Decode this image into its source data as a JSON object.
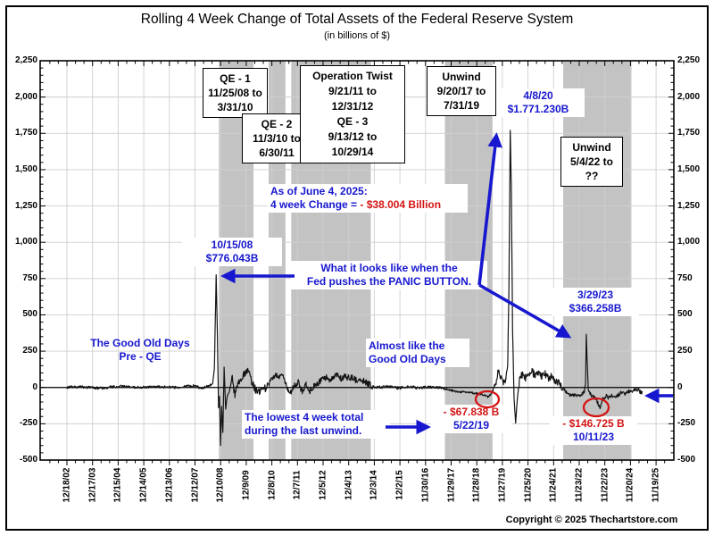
{
  "window": {
    "title": "Rolling 4 Week Change of Total Assets of the Federal Reserve System",
    "subtitle": "(in billions of $)"
  },
  "footer": {
    "copyright": "Copyright © 2025 Thechartstore.com"
  },
  "colors": {
    "blue": "#1717cf",
    "red": "#d41414",
    "band": "#c3c3c3",
    "grid": "#cfcfcf",
    "line": "#141414",
    "axis": "#000000"
  },
  "chart_data": {
    "type": "line",
    "title": "Rolling 4 Week Change of Total Assets of the Federal Reserve System",
    "subtitle": "(in billions of $)",
    "ylabel": "billions of $",
    "ylim": [
      -500,
      2250
    ],
    "grid": true,
    "y_tick_labels": [
      "2,250",
      "2,000",
      "1,750",
      "1,500",
      "1,250",
      "1,000",
      "750",
      "500",
      "250",
      "0",
      "-250",
      "-500"
    ],
    "y_tick_values": [
      2250,
      2000,
      1750,
      1500,
      1250,
      1000,
      750,
      500,
      250,
      0,
      -250,
      -500
    ],
    "x_tick_labels": [
      "12/18/02",
      "12/17/03",
      "12/15/04",
      "12/14/05",
      "12/13/06",
      "12/12/07",
      "12/10/08",
      "12/9/09",
      "12/8/10",
      "12/7/11",
      "12/5/12",
      "12/4/13",
      "12/3/14",
      "12/2/15",
      "11/30/16",
      "11/29/17",
      "11/28/18",
      "11/27/19",
      "11/25/20",
      "11/24/21",
      "11/23/22",
      "11/22/23",
      "11/20/24",
      "11/19/25"
    ],
    "shaded_periods": [
      {
        "name": "QE - 1",
        "from": "11/25/08",
        "to": "3/31/10",
        "from_t": 2008.899,
        "to_t": 2010.247,
        "box_lines": [
          "QE - 1",
          "11/25/08 to",
          "3/31/10"
        ]
      },
      {
        "name": "QE - 2",
        "from": "11/3/10",
        "to": "6/30/11",
        "from_t": 2010.838,
        "to_t": 2011.494,
        "box_lines": [
          "QE - 2",
          "11/3/10 to",
          "6/30/11"
        ]
      },
      {
        "name": "Operation Twist / QE - 3",
        "from": "9/21/11",
        "to": "10/29/14",
        "from_t": 2011.72,
        "to_t": 2014.826,
        "box_lines": [
          "Operation Twist",
          "9/21/11 to",
          "12/31/12",
          "QE - 3",
          "9/13/12 to",
          "10/29/14"
        ]
      },
      {
        "name": "Unwind",
        "from": "9/20/17",
        "to": "7/31/19",
        "from_t": 2017.719,
        "to_t": 2019.578,
        "box_lines": [
          "Unwind",
          "9/20/17 to",
          "7/31/19"
        ]
      },
      {
        "name": "Unwind",
        "from": "5/4/22",
        "to": "??",
        "from_t": 2022.337,
        "to_t": 2025.0,
        "box_lines": [
          "Unwind",
          "5/4/22 to",
          "??"
        ]
      }
    ],
    "notes": {
      "d2008": [
        "10/15/08",
        "$776.043B"
      ],
      "d2020": [
        "4/8/20",
        "$1.771.230B"
      ],
      "d2023": [
        "3/29/23",
        "$366.258B"
      ],
      "asof": {
        "line1": "As of June 4, 2025:",
        "line2_prefix": "4 week Change = ",
        "line2_value": "- $38.004 Billion"
      },
      "panic": [
        "What it looks like when the",
        "Fed pushes the PANIC BUTTON."
      ],
      "goodold": [
        "The Good Old Days",
        "Pre - QE"
      ],
      "almost": [
        "Almost like the",
        "Good Old Days"
      ],
      "lowest": [
        "The lowest 4 week total",
        "during the last unwind."
      ],
      "low2019": [
        "- $67.838 B",
        "5/22/19"
      ],
      "low2023": [
        "- $146.725 B",
        "10/11/23"
      ]
    },
    "key_points": [
      {
        "date": "10/15/08",
        "value_billions": 776.043
      },
      {
        "date": "5/22/19",
        "value_billions": -67.838
      },
      {
        "date": "4/8/20",
        "value_billions": 1771.23
      },
      {
        "date": "3/29/23",
        "value_billions": 366.258
      },
      {
        "date": "10/11/23",
        "value_billions": -146.725
      },
      {
        "date": "6/4/25",
        "value_billions": -38.004
      }
    ],
    "series": {
      "name": "Rolling 4 week change of Fed total assets",
      "step_years": 0.019230769,
      "anchors": [
        [
          2002.96,
          0
        ],
        [
          2003.5,
          5
        ],
        [
          2004.2,
          -5
        ],
        [
          2005.0,
          8
        ],
        [
          2005.8,
          0
        ],
        [
          2006.5,
          6
        ],
        [
          2007.2,
          0
        ],
        [
          2007.9,
          12
        ],
        [
          2008.2,
          -5
        ],
        [
          2008.5,
          10
        ],
        [
          2008.65,
          25
        ],
        [
          2008.72,
          130
        ],
        [
          2008.79,
          776
        ],
        [
          2008.84,
          320
        ],
        [
          2008.88,
          -140
        ],
        [
          2008.92,
          -60
        ],
        [
          2008.96,
          -400
        ],
        [
          2009.0,
          -130
        ],
        [
          2009.05,
          -310
        ],
        [
          2009.1,
          140
        ],
        [
          2009.16,
          -150
        ],
        [
          2009.22,
          -60
        ],
        [
          2009.3,
          -30
        ],
        [
          2009.42,
          70
        ],
        [
          2009.52,
          -70
        ],
        [
          2009.62,
          20
        ],
        [
          2009.75,
          50
        ],
        [
          2009.88,
          90
        ],
        [
          2010.0,
          120
        ],
        [
          2010.12,
          70
        ],
        [
          2010.22,
          20
        ],
        [
          2010.32,
          -15
        ],
        [
          2010.5,
          -30
        ],
        [
          2010.68,
          -10
        ],
        [
          2010.85,
          25
        ],
        [
          2010.95,
          60
        ],
        [
          2011.1,
          85
        ],
        [
          2011.25,
          75
        ],
        [
          2011.4,
          85
        ],
        [
          2011.5,
          30
        ],
        [
          2011.6,
          -20
        ],
        [
          2011.72,
          -35
        ],
        [
          2011.85,
          15
        ],
        [
          2012.0,
          40
        ],
        [
          2012.15,
          -35
        ],
        [
          2012.3,
          25
        ],
        [
          2012.45,
          -25
        ],
        [
          2012.6,
          5
        ],
        [
          2012.75,
          25
        ],
        [
          2012.9,
          55
        ],
        [
          2013.05,
          70
        ],
        [
          2013.2,
          55
        ],
        [
          2013.35,
          75
        ],
        [
          2013.5,
          85
        ],
        [
          2013.65,
          60
        ],
        [
          2013.8,
          75
        ],
        [
          2013.95,
          70
        ],
        [
          2014.1,
          65
        ],
        [
          2014.25,
          50
        ],
        [
          2014.4,
          60
        ],
        [
          2014.55,
          45
        ],
        [
          2014.7,
          30
        ],
        [
          2014.85,
          10
        ],
        [
          2015.1,
          0
        ],
        [
          2015.5,
          6
        ],
        [
          2015.9,
          -4
        ],
        [
          2016.3,
          5
        ],
        [
          2016.7,
          -2
        ],
        [
          2017.1,
          4
        ],
        [
          2017.5,
          2
        ],
        [
          2017.72,
          -10
        ],
        [
          2017.9,
          -18
        ],
        [
          2018.2,
          -28
        ],
        [
          2018.5,
          -32
        ],
        [
          2018.8,
          -38
        ],
        [
          2019.05,
          -45
        ],
        [
          2019.25,
          -52
        ],
        [
          2019.39,
          -68
        ],
        [
          2019.5,
          -48
        ],
        [
          2019.62,
          -15
        ],
        [
          2019.72,
          40
        ],
        [
          2019.8,
          120
        ],
        [
          2019.9,
          70
        ],
        [
          2020.0,
          35
        ],
        [
          2020.1,
          50
        ],
        [
          2020.17,
          150
        ],
        [
          2020.22,
          700
        ],
        [
          2020.27,
          1771
        ],
        [
          2020.31,
          1400
        ],
        [
          2020.36,
          400
        ],
        [
          2020.42,
          -80
        ],
        [
          2020.48,
          -245
        ],
        [
          2020.54,
          -90
        ],
        [
          2020.62,
          40
        ],
        [
          2020.75,
          95
        ],
        [
          2020.88,
          60
        ],
        [
          2021.0,
          90
        ],
        [
          2021.12,
          110
        ],
        [
          2021.25,
          75
        ],
        [
          2021.38,
          105
        ],
        [
          2021.5,
          70
        ],
        [
          2021.62,
          95
        ],
        [
          2021.75,
          65
        ],
        [
          2021.88,
          80
        ],
        [
          2022.0,
          55
        ],
        [
          2022.12,
          40
        ],
        [
          2022.25,
          15
        ],
        [
          2022.34,
          -5
        ],
        [
          2022.5,
          -40
        ],
        [
          2022.65,
          -55
        ],
        [
          2022.8,
          -50
        ],
        [
          2022.95,
          -60
        ],
        [
          2023.08,
          -45
        ],
        [
          2023.17,
          -25
        ],
        [
          2023.21,
          30
        ],
        [
          2023.24,
          366
        ],
        [
          2023.27,
          200
        ],
        [
          2023.32,
          -20
        ],
        [
          2023.42,
          -55
        ],
        [
          2023.55,
          -70
        ],
        [
          2023.65,
          -90
        ],
        [
          2023.78,
          -147
        ],
        [
          2023.88,
          -80
        ],
        [
          2024.0,
          -60
        ],
        [
          2024.12,
          -70
        ],
        [
          2024.25,
          -55
        ],
        [
          2024.38,
          -62
        ],
        [
          2024.5,
          -48
        ],
        [
          2024.62,
          -35
        ],
        [
          2024.75,
          -42
        ],
        [
          2024.88,
          -28
        ],
        [
          2025.0,
          -22
        ],
        [
          2025.12,
          -18
        ],
        [
          2025.25,
          -12
        ],
        [
          2025.33,
          -28
        ],
        [
          2025.42,
          -38
        ]
      ],
      "noise_regions": [
        [
          2002.96,
          2008.6,
          9
        ],
        [
          2008.6,
          2009.35,
          0
        ],
        [
          2009.35,
          2010.85,
          28
        ],
        [
          2010.85,
          2011.7,
          16
        ],
        [
          2011.7,
          2014.9,
          22
        ],
        [
          2014.9,
          2017.7,
          10
        ],
        [
          2017.7,
          2019.6,
          7
        ],
        [
          2019.6,
          2020.14,
          20
        ],
        [
          2020.14,
          2020.6,
          0
        ],
        [
          2020.6,
          2022.34,
          26
        ],
        [
          2022.34,
          2023.18,
          10
        ],
        [
          2023.18,
          2023.36,
          0
        ],
        [
          2023.36,
          2025.43,
          14
        ]
      ]
    }
  }
}
